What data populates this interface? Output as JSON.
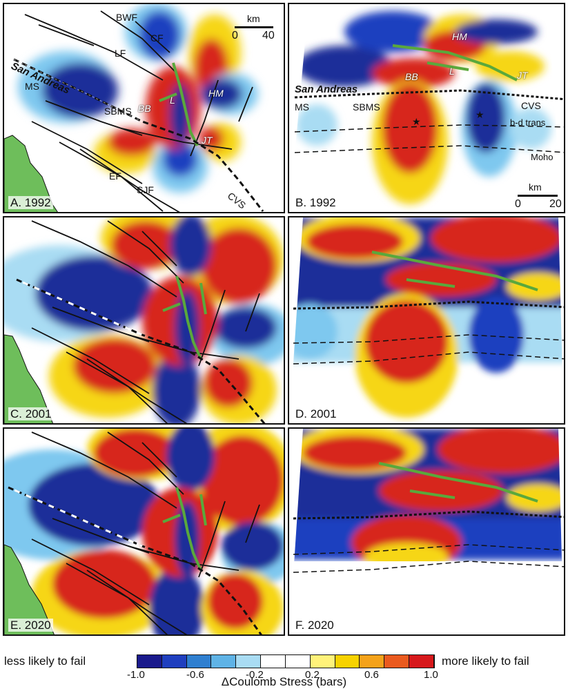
{
  "panels": [
    {
      "label": "A. 1992",
      "kind": "map",
      "year": 1992,
      "faults": [
        "BWF",
        "CF",
        "LF",
        "San Andreas",
        "MS",
        "SBMS",
        "BB",
        "L",
        "HM",
        "JT",
        "EF",
        "SJF",
        "CVS"
      ],
      "scale": {
        "unit": "km",
        "start": "0",
        "end": "40"
      }
    },
    {
      "label": "B. 1992",
      "kind": "section",
      "year": 1992,
      "labels": [
        "HM",
        "BB",
        "L",
        "JT",
        "San Andreas",
        "MS",
        "SBMS",
        "CVS",
        "b-d trans",
        "Moho"
      ],
      "scale": {
        "unit": "km",
        "start": "0",
        "end": "20"
      }
    },
    {
      "label": "C. 2001",
      "kind": "map",
      "year": 2001
    },
    {
      "label": "D. 2001",
      "kind": "section",
      "year": 2001
    },
    {
      "label": "E. 2020",
      "kind": "map",
      "year": 2020
    },
    {
      "label": "F. 2020",
      "kind": "section",
      "year": 2020
    }
  ],
  "colorbar": {
    "left_label": "less likely to fail",
    "right_label": "more likely to fail",
    "ticks": [
      "-1.0",
      "-0.6",
      "-0.2",
      "0.2",
      "0.6",
      "1.0"
    ],
    "title": "ΔCoulomb Stress (bars)",
    "min": -1.0,
    "max": 1.0,
    "colors": [
      "#1a1a8c",
      "#1f3fbf",
      "#2f7fd0",
      "#5fb3e6",
      "#a9dcf3",
      "#ffffff",
      "#ffffff",
      "#fff27a",
      "#f7d200",
      "#f4a21a",
      "#ea5a1e",
      "#d7191c"
    ]
  },
  "colors": {
    "ocean": "#6ebe5b",
    "fault_green": "#5aa83c",
    "blue": "#1f2f99",
    "red": "#d7261c",
    "yellow": "#f6d618"
  }
}
